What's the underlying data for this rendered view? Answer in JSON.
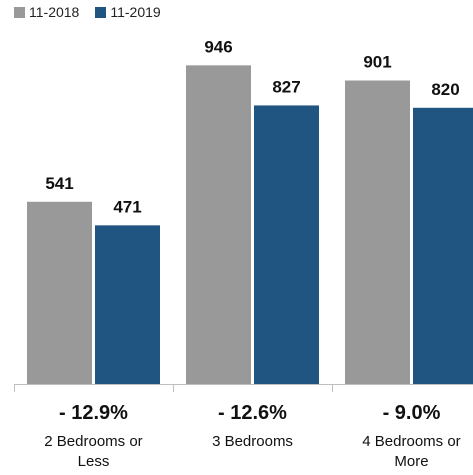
{
  "chart_data": {
    "type": "bar",
    "categories": [
      "2 Bedrooms or Less",
      "3 Bedrooms",
      "4 Bedrooms or More"
    ],
    "category_label_lines": [
      [
        "2 Bedrooms or",
        "Less"
      ],
      [
        "3 Bedrooms"
      ],
      [
        "4 Bedrooms or",
        "More"
      ]
    ],
    "series": [
      {
        "name": "11-2018",
        "values": [
          541,
          946,
          901
        ],
        "color": "#999999"
      },
      {
        "name": "11-2019",
        "values": [
          471,
          827,
          820
        ],
        "color": "#1f5580"
      }
    ],
    "change_labels": [
      "- 12.9%",
      "- 12.6%",
      "- 9.0%"
    ],
    "ylim": [
      0,
      1140
    ],
    "grid": false,
    "legend_position": "top-left"
  }
}
